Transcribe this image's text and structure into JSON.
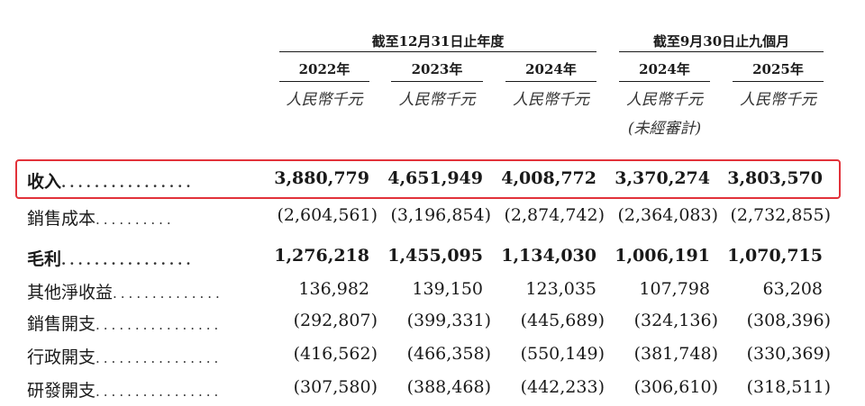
{
  "header": {
    "group1": "截至12月31日止年度",
    "group2": "截至9月30日止九個月",
    "years": [
      "2022年",
      "2023年",
      "2024年",
      "2024年",
      "2025年"
    ],
    "units": [
      "人民幣千元",
      "人民幣千元",
      "人民幣千元",
      "人民幣千元",
      "人民幣千元"
    ],
    "unaudited": "(未經審計)"
  },
  "rows": [
    {
      "label": "收入",
      "dots": "................",
      "values": [
        "3,880,779",
        "4,651,949",
        "4,008,772",
        "3,370,274",
        "3,803,570"
      ]
    },
    {
      "label": "銷售成本",
      "dots": "..........",
      "values": [
        "(2,604,561)",
        "(3,196,854)",
        "(2,874,742)",
        "(2,364,083)",
        "(2,732,855)"
      ]
    },
    {
      "label": "毛利",
      "dots": "................",
      "values": [
        "1,276,218",
        "1,455,095",
        "1,134,030",
        "1,006,191",
        "1,070,715"
      ]
    },
    {
      "label": "其他淨收益",
      "dots": "..............",
      "values": [
        "136,982",
        "139,150",
        "123,035",
        "107,798",
        "63,208"
      ]
    },
    {
      "label": "銷售開支",
      "dots": "................",
      "values": [
        "(292,807)",
        "(399,331)",
        "(445,689)",
        "(324,136)",
        "(308,396)"
      ]
    },
    {
      "label": "行政開支",
      "dots": "................",
      "values": [
        "(416,562)",
        "(466,358)",
        "(550,149)",
        "(381,748)",
        "(330,369)"
      ]
    },
    {
      "label": "研發開支",
      "dots": "................",
      "values": [
        "(307,580)",
        "(388,468)",
        "(442,233)",
        "(306,610)",
        "(318,511)"
      ]
    }
  ],
  "highlight_color": "#e2323a"
}
